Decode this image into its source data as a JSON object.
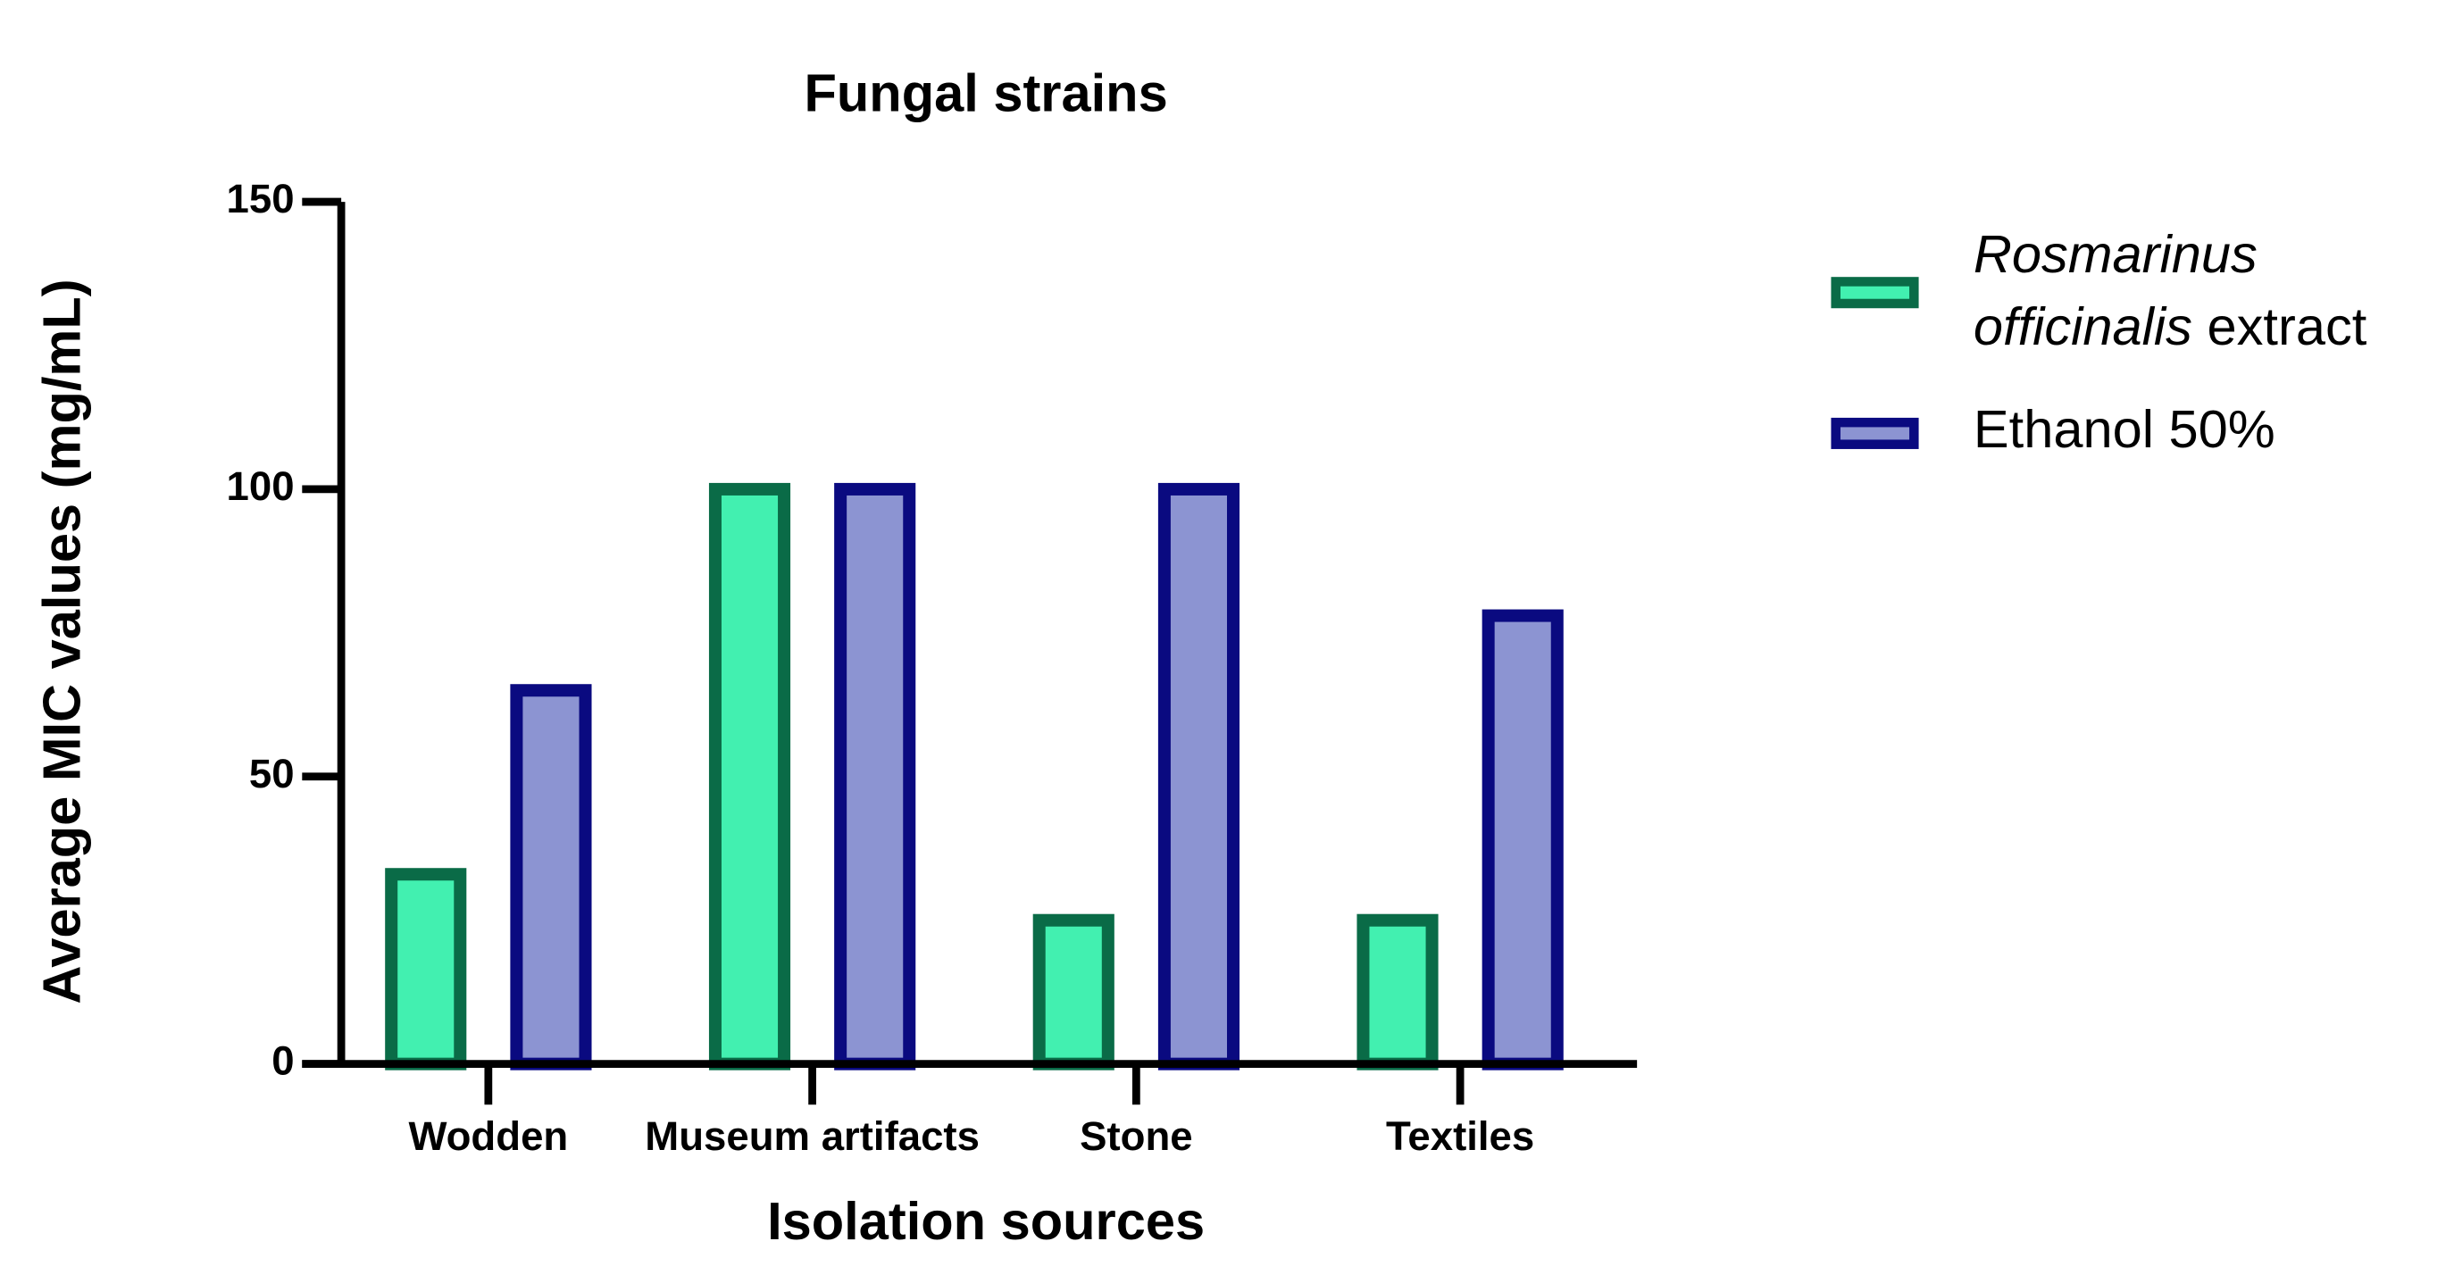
{
  "chart_data": {
    "type": "bar",
    "title": "Fungal strains",
    "x_label": "Isolation sources",
    "y_label": "Average MIC values (mg/mL)",
    "categories": [
      "Wodden",
      "Museum artifacts",
      "Stone",
      "Textiles"
    ],
    "series": [
      {
        "name": "Rosmarinus officinalis extract",
        "color": "#42f0b0",
        "edgecolor": "#0a6b47",
        "values": [
          33,
          100,
          25,
          25
        ]
      },
      {
        "name": "Ethanol 50%",
        "color": "#8c94d2",
        "edgecolor": "#0a0a80",
        "values": [
          65,
          100,
          100,
          78
        ]
      }
    ],
    "ylim": [
      0,
      150
    ],
    "yticks": [
      0,
      50,
      100,
      150
    ],
    "legend": "right"
  }
}
